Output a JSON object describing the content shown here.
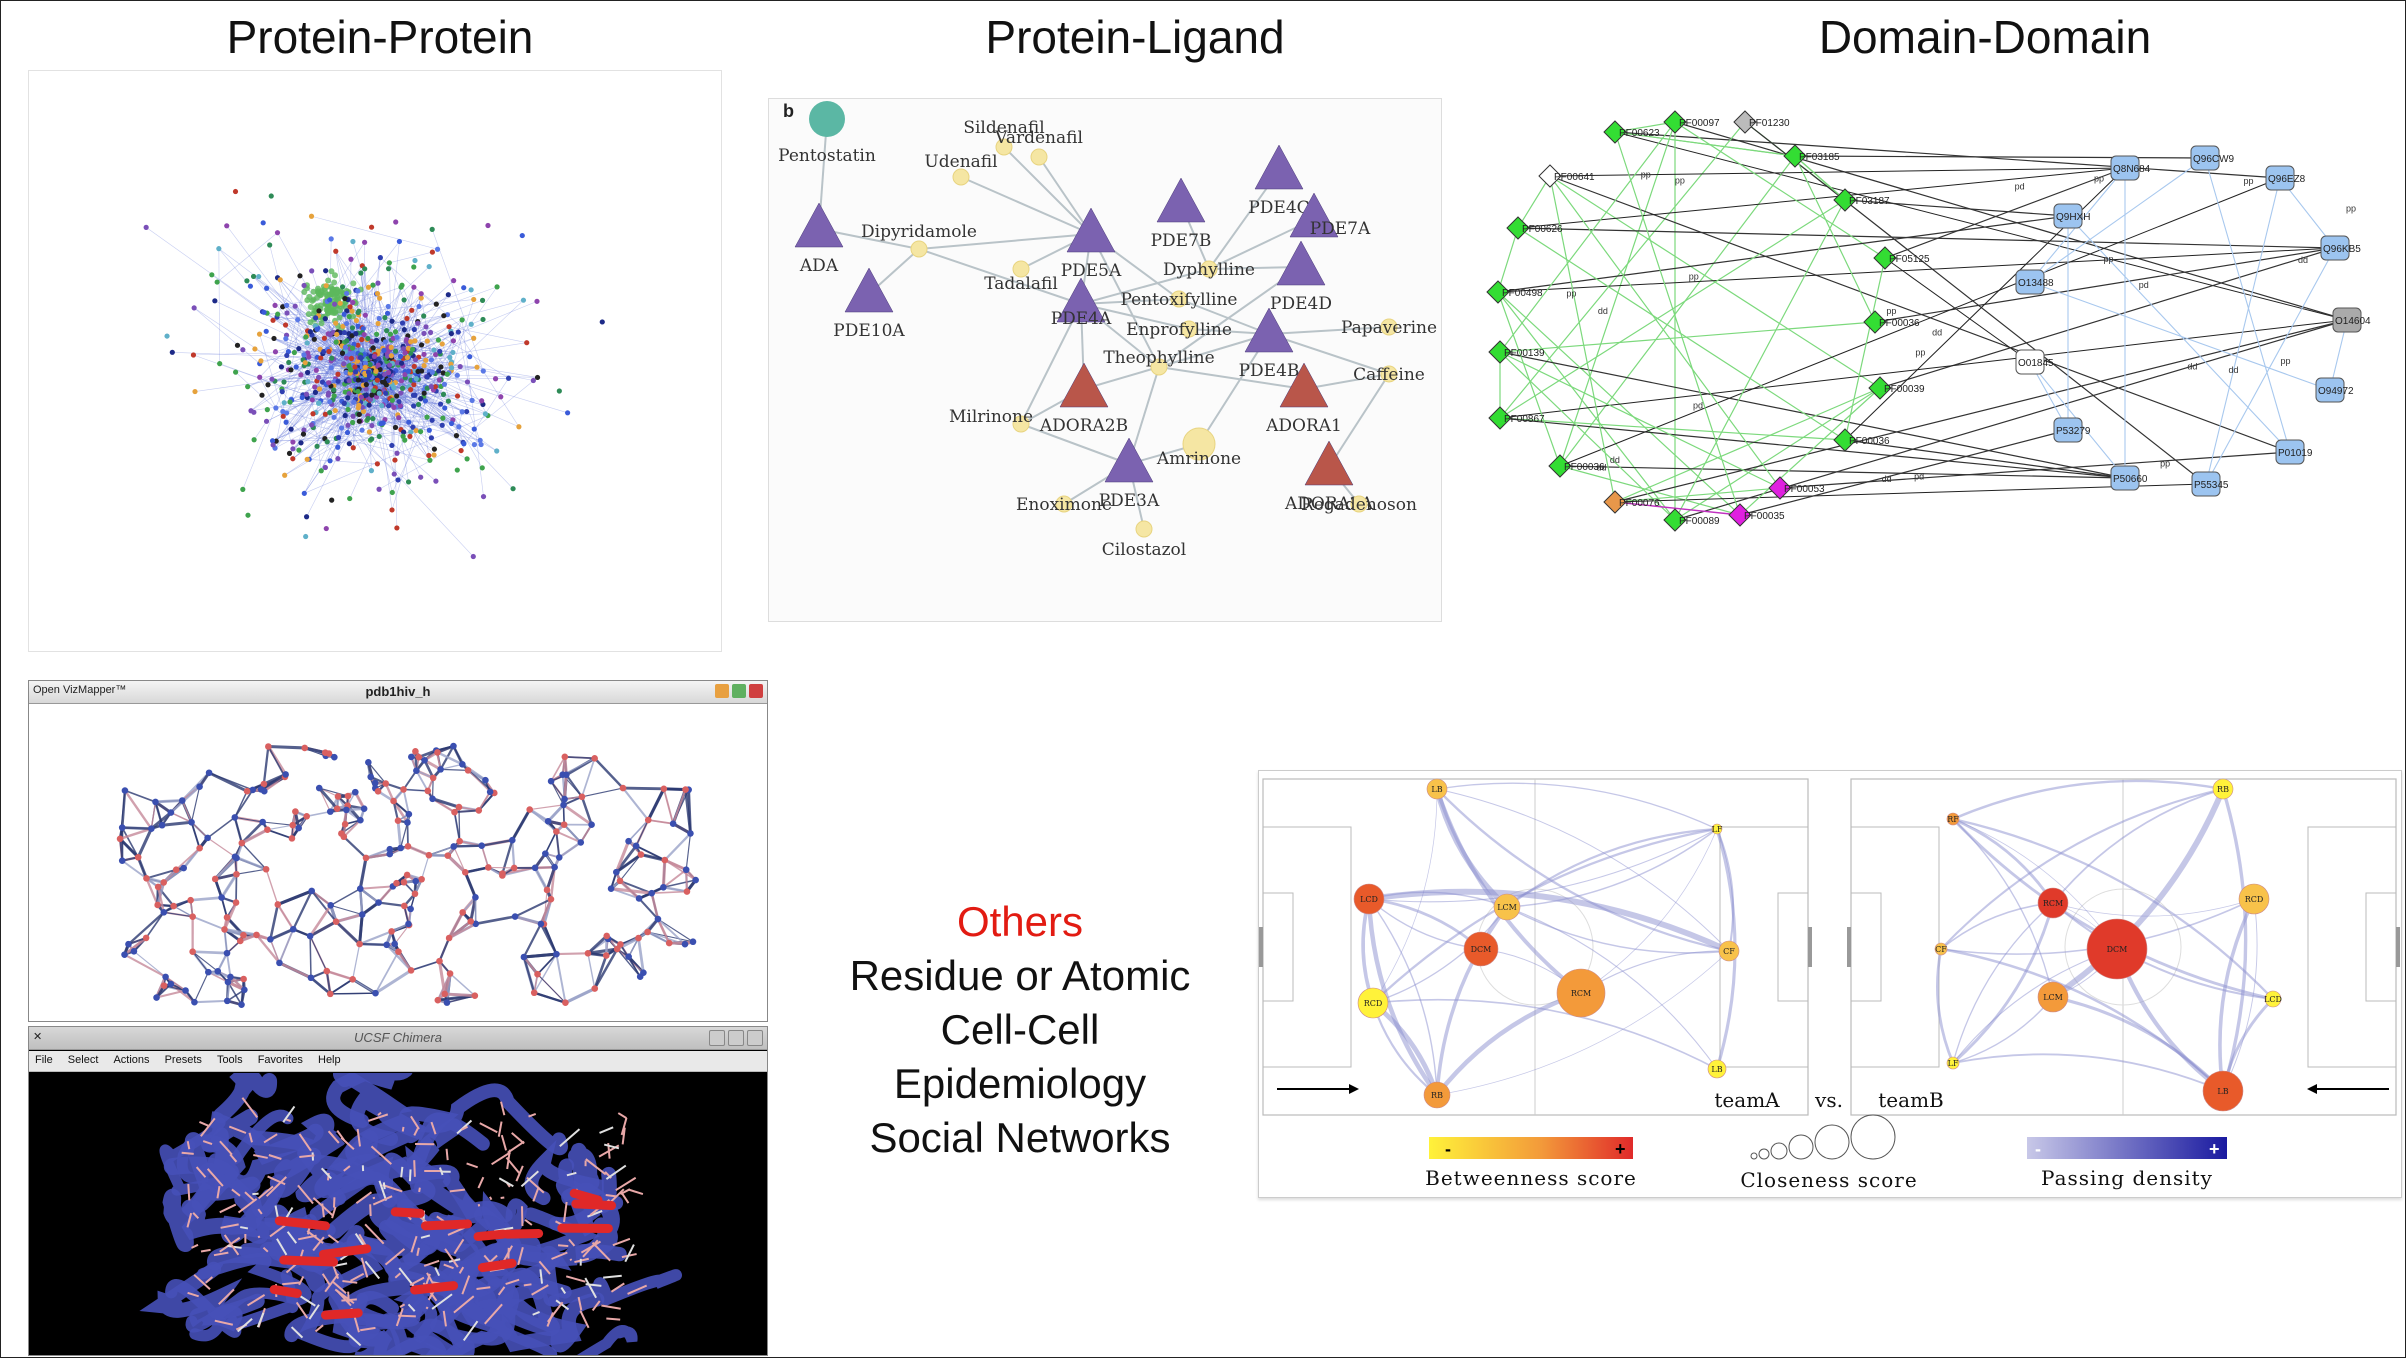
{
  "titles": {
    "protein_protein": "Protein-Protein",
    "protein_ligand": "Protein-Ligand",
    "domain_domain": "Domain-Domain"
  },
  "others": {
    "heading": "Others",
    "items": [
      "Residue or Atomic",
      "Cell-Cell",
      "Epidemiology",
      "Social Networks"
    ]
  },
  "ligand_panel": {
    "label": "b",
    "nodes": [
      "Pentostatin",
      "ADA",
      "Dipyridamole",
      "PDE10A",
      "Udenafil",
      "Sildenafil",
      "Vardenafil",
      "Tadalafil",
      "PDE5A",
      "PDE7B",
      "PDE4C",
      "PDE7A",
      "Dyphylline",
      "Pentoxifylline",
      "Enprofylline",
      "PDE4A",
      "PDE4D",
      "PDE4B",
      "Papaverine",
      "Theophylline",
      "Caffeine",
      "Milrinone",
      "ADORA2B",
      "ADORA1",
      "Amrinone",
      "PDE3A",
      "ADORA2A",
      "Enoximone",
      "Cilostazol",
      "Regadenoson"
    ]
  },
  "domain_panel": {
    "left_labels": [
      "PF00623",
      "PF00097",
      "PF01230",
      "PF03185",
      "PF00641",
      "PF03187",
      "PF00626",
      "PF05125",
      "PF00498",
      "PF00036",
      "PF00139",
      "PF00039",
      "PF00867",
      "PF00036",
      "PF00036",
      "PF00076",
      "PF00053",
      "PF00089",
      "PF00035"
    ],
    "right_labels": [
      "Q8N684",
      "Q96CW9",
      "Q96EZ8",
      "Q9HXH",
      "Q96KB5",
      "O13488",
      "O14604",
      "O01845",
      "O94972",
      "P53279",
      "P01019",
      "P50660",
      "P55345"
    ],
    "edge_labels": [
      "dd",
      "pd",
      "pp"
    ]
  },
  "vizmapper": {
    "left_title": "Open VizMapper™",
    "title": "pdb1hiv_h"
  },
  "chimera": {
    "title": "UCSF Chimera",
    "menu": [
      "File",
      "Select",
      "Actions",
      "Presets",
      "Tools",
      "Favorites",
      "Help"
    ]
  },
  "football": {
    "teamA": "teamA",
    "vs": "vs.",
    "teamB": "teamB",
    "teamA_nodes": [
      "LB",
      "LF",
      "LCD",
      "LCM",
      "DCM",
      "CF",
      "RCM",
      "RCD",
      "LB",
      "RB"
    ],
    "teamB_nodes": [
      "RB",
      "RF",
      "RCD",
      "RCM",
      "DCM",
      "CF",
      "LCM",
      "LCD",
      "LF",
      "LB"
    ],
    "legend": {
      "betweenness": "Betweenness score",
      "closeness": "Closeness score",
      "passing": "Passing density",
      "minus": "-",
      "plus": "+"
    }
  },
  "colors": {
    "accent_red": "#e21b12",
    "ligand_purple": "#7b62b0",
    "ligand_red": "#b9564a",
    "domain_green": "#33dd33",
    "domain_blue": "#9cc4f0",
    "domain_magenta": "#e020e0"
  }
}
